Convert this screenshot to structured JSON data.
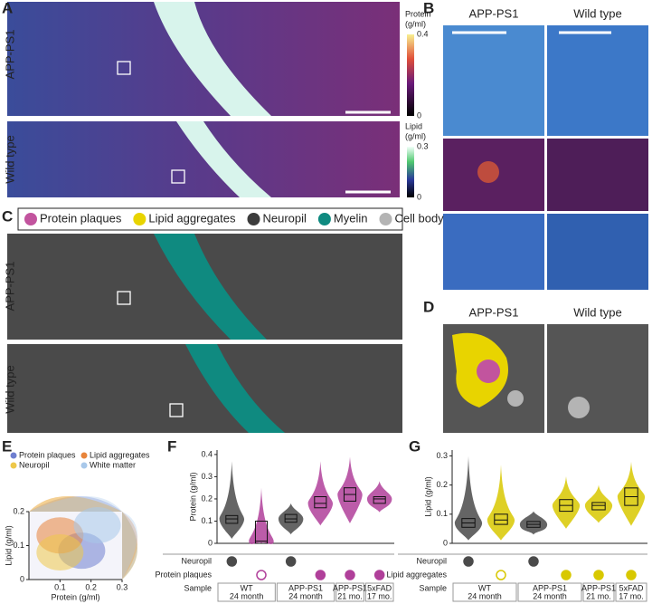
{
  "panel_labels": [
    "A",
    "B",
    "C",
    "D",
    "E",
    "F",
    "G"
  ],
  "panel_a": {
    "row_labels": [
      "APP-PS1",
      "Wild type"
    ],
    "colorbars": [
      {
        "title": "Protein",
        "unit": "(g/ml)",
        "ticks": [
          0.4,
          0
        ]
      },
      {
        "title": "Lipid",
        "unit": "(g/ml)",
        "ticks": [
          0.3,
          0
        ]
      }
    ]
  },
  "panel_b": {
    "column_labels": [
      "APP-PS1",
      "Wild type"
    ]
  },
  "panel_c": {
    "row_labels": [
      "APP-PS1",
      "Wild type"
    ],
    "legend": [
      {
        "name": "Protein plaques",
        "color": "#c2549e"
      },
      {
        "name": "Lipid aggregates",
        "color": "#e8d400"
      },
      {
        "name": "Neuropil",
        "color": "#3c3c3c"
      },
      {
        "name": "Myelin",
        "color": "#0f8a80"
      },
      {
        "name": "Cell body",
        "color": "#b4b4b4"
      }
    ]
  },
  "panel_d": {
    "column_labels": [
      "APP-PS1",
      "Wild type"
    ]
  },
  "chart_data": [
    {
      "type": "density",
      "xlabel": "Protein (g/ml)",
      "ylabel": "Lipid (g/ml)",
      "xlim": [
        0,
        0.3
      ],
      "xticks": [
        0.1,
        0.2,
        0.3
      ],
      "ylim": [
        0,
        0.2
      ],
      "yticks": [
        0,
        0.1,
        0.2
      ],
      "series": [
        {
          "name": "Protein plaques",
          "color": "#6f7fd0",
          "center_x": 0.17,
          "center_y": 0.085
        },
        {
          "name": "Lipid aggregates",
          "color": "#e8843a",
          "center_x": 0.1,
          "center_y": 0.13
        },
        {
          "name": "Neuropil",
          "color": "#eec84a",
          "center_x": 0.1,
          "center_y": 0.08
        },
        {
          "name": "White matter",
          "color": "#a8c8ea",
          "center_x": 0.22,
          "center_y": 0.16
        }
      ]
    },
    {
      "type": "violin",
      "ylabel": "Protein (g/ml)",
      "ylim": [
        0,
        0.42
      ],
      "yticks": [
        0,
        0.1,
        0.2,
        0.3,
        0.4
      ],
      "colors": [
        "#4a4a4a",
        "#b0409a",
        "#4a4a4a",
        "#b0409a",
        "#b0409a",
        "#b0409a"
      ],
      "min": [
        0.02,
        0,
        0.04,
        0.08,
        0.09,
        0.14
      ],
      "q1": [
        0.09,
        0,
        0.095,
        0.16,
        0.19,
        0.18
      ],
      "values": [
        0.11,
        0.01,
        0.11,
        0.18,
        0.22,
        0.2
      ],
      "q3": [
        0.125,
        0.1,
        0.13,
        0.21,
        0.25,
        0.21
      ],
      "max": [
        0.37,
        0.25,
        0.18,
        0.37,
        0.39,
        0.28
      ],
      "table": {
        "row_labels": [
          "Neuropil",
          "Protein plaques",
          "Sample"
        ],
        "row_colors": [
          "#4a4a4a",
          "#b0409a"
        ],
        "markers": [
          [
            "filled",
            null,
            "filled",
            null,
            null,
            null
          ],
          [
            null,
            "open",
            null,
            "filled",
            "filled",
            "filled"
          ]
        ],
        "samples": [
          {
            "label": "WT",
            "sub": "24 month",
            "span": 2
          },
          {
            "label": "APP-PS1",
            "sub": "24 month",
            "span": 2
          },
          {
            "label": "APP-PS1",
            "sub": "21 mo.",
            "span": 1
          },
          {
            "label": "5xFAD",
            "sub": "17 mo.",
            "span": 1
          }
        ]
      }
    },
    {
      "type": "violin",
      "ylabel": "Lipid (g/ml)",
      "ylim": [
        0,
        0.32
      ],
      "yticks": [
        0,
        0.1,
        0.2,
        0.3
      ],
      "colors": [
        "#4a4a4a",
        "#d8c800",
        "#4a4a4a",
        "#d8c800",
        "#d8c800",
        "#d8c800"
      ],
      "min": [
        0.01,
        0.01,
        0.03,
        0.05,
        0.07,
        0.06
      ],
      "q1": [
        0.055,
        0.065,
        0.055,
        0.11,
        0.115,
        0.13
      ],
      "values": [
        0.07,
        0.08,
        0.065,
        0.13,
        0.13,
        0.16
      ],
      "q3": [
        0.085,
        0.1,
        0.075,
        0.15,
        0.14,
        0.19
      ],
      "max": [
        0.3,
        0.27,
        0.11,
        0.23,
        0.2,
        0.28
      ],
      "table": {
        "row_labels": [
          "Neuropil",
          "Lipid aggregates",
          "Sample"
        ],
        "row_colors": [
          "#4a4a4a",
          "#d8c800"
        ],
        "markers": [
          [
            "filled",
            null,
            "filled",
            null,
            null,
            null
          ],
          [
            null,
            "open",
            null,
            "filled",
            "filled",
            "filled"
          ]
        ],
        "samples": [
          {
            "label": "WT",
            "sub": "24 month",
            "span": 2
          },
          {
            "label": "APP-PS1",
            "sub": "24 month",
            "span": 2
          },
          {
            "label": "APP-PS1",
            "sub": "21 mo.",
            "span": 1
          },
          {
            "label": "5xFAD",
            "sub": "17 mo.",
            "span": 1
          }
        ]
      }
    }
  ]
}
